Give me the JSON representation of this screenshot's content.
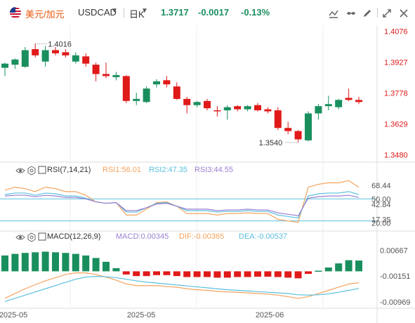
{
  "header": {
    "symbol_name": "美元/加元",
    "symbol_code": "USDCAD",
    "period": "日K",
    "last_price": "1.3717",
    "change": "-0.0017",
    "change_pct": "-0.13%",
    "tools": [
      "draw-icon",
      "indicator-icon",
      "pencil-icon",
      "settings-icon",
      "expand-icon",
      "close-icon"
    ]
  },
  "colors": {
    "up": "#1a8f5e",
    "down": "#e01919",
    "rsi1": "#f4a35d",
    "rsi2": "#5bc0de",
    "rsi3": "#9b7fd1",
    "dif": "#f4a35d",
    "dea": "#5bc0de"
  },
  "chart_data": {
    "type": "candlestick",
    "price_axis": [
      "1.4076",
      "1.3927",
      "1.3778",
      "1.3629",
      "1.3480"
    ],
    "ylim": [
      1.3455,
      1.4105
    ],
    "high_label": "1.4016",
    "low_label": "1.3540",
    "x_labels": [
      "2025-05",
      "2025-05",
      "2025-06"
    ],
    "candles": [
      {
        "o": 1.39,
        "h": 1.3925,
        "l": 1.386,
        "c": 1.392
      },
      {
        "o": 1.3915,
        "h": 1.3945,
        "l": 1.3895,
        "c": 1.394
      },
      {
        "o": 1.3905,
        "h": 1.4,
        "l": 1.39,
        "c": 1.3985
      },
      {
        "o": 1.399,
        "h": 1.4016,
        "l": 1.395,
        "c": 1.396
      },
      {
        "o": 1.393,
        "h": 1.4005,
        "l": 1.3905,
        "c": 1.3985
      },
      {
        "o": 1.3985,
        "h": 1.4,
        "l": 1.396,
        "c": 1.397
      },
      {
        "o": 1.3975,
        "h": 1.399,
        "l": 1.395,
        "c": 1.396
      },
      {
        "o": 1.393,
        "h": 1.3975,
        "l": 1.392,
        "c": 1.396
      },
      {
        "o": 1.3955,
        "h": 1.397,
        "l": 1.3905,
        "c": 1.392
      },
      {
        "o": 1.3915,
        "h": 1.3925,
        "l": 1.3835,
        "c": 1.387
      },
      {
        "o": 1.387,
        "h": 1.3925,
        "l": 1.385,
        "c": 1.386
      },
      {
        "o": 1.3855,
        "h": 1.388,
        "l": 1.384,
        "c": 1.3865
      },
      {
        "o": 1.386,
        "h": 1.3865,
        "l": 1.373,
        "c": 1.374
      },
      {
        "o": 1.374,
        "h": 1.378,
        "l": 1.372,
        "c": 1.375
      },
      {
        "o": 1.3735,
        "h": 1.381,
        "l": 1.373,
        "c": 1.38
      },
      {
        "o": 1.382,
        "h": 1.3845,
        "l": 1.3805,
        "c": 1.3835
      },
      {
        "o": 1.384,
        "h": 1.386,
        "l": 1.3805,
        "c": 1.382
      },
      {
        "o": 1.381,
        "h": 1.383,
        "l": 1.3745,
        "c": 1.375
      },
      {
        "o": 1.375,
        "h": 1.376,
        "l": 1.368,
        "c": 1.372
      },
      {
        "o": 1.372,
        "h": 1.374,
        "l": 1.371,
        "c": 1.3735
      },
      {
        "o": 1.374,
        "h": 1.375,
        "l": 1.3695,
        "c": 1.3705
      },
      {
        "o": 1.3695,
        "h": 1.3715,
        "l": 1.3665,
        "c": 1.369
      },
      {
        "o": 1.3695,
        "h": 1.372,
        "l": 1.365,
        "c": 1.371
      },
      {
        "o": 1.3715,
        "h": 1.372,
        "l": 1.369,
        "c": 1.37
      },
      {
        "o": 1.37,
        "h": 1.372,
        "l": 1.369,
        "c": 1.3715
      },
      {
        "o": 1.372,
        "h": 1.373,
        "l": 1.369,
        "c": 1.3695
      },
      {
        "o": 1.37,
        "h": 1.371,
        "l": 1.368,
        "c": 1.369
      },
      {
        "o": 1.3695,
        "h": 1.371,
        "l": 1.36,
        "c": 1.361
      },
      {
        "o": 1.361,
        "h": 1.364,
        "l": 1.358,
        "c": 1.3595
      },
      {
        "o": 1.3595,
        "h": 1.36,
        "l": 1.354,
        "c": 1.3555
      },
      {
        "o": 1.355,
        "h": 1.369,
        "l": 1.3545,
        "c": 1.368
      },
      {
        "o": 1.368,
        "h": 1.3725,
        "l": 1.365,
        "c": 1.3715
      },
      {
        "o": 1.3715,
        "h": 1.3765,
        "l": 1.3695,
        "c": 1.3725
      },
      {
        "o": 1.371,
        "h": 1.375,
        "l": 1.37,
        "c": 1.3745
      },
      {
        "o": 1.3755,
        "h": 1.38,
        "l": 1.374,
        "c": 1.3745
      },
      {
        "o": 1.3745,
        "h": 1.376,
        "l": 1.3725,
        "c": 1.3735
      }
    ],
    "rsi": {
      "label": "RSI(7,14,21)",
      "rsi1": "RSI1:56.01",
      "rsi2": "RSI2:47.35",
      "rsi3": "RSI3:44.55",
      "axis": [
        "68.44",
        "50.00",
        "42.84",
        "17.35",
        "20.00"
      ],
      "ylim": [
        10,
        80
      ],
      "lines": [
        50,
        20
      ],
      "series": [
        {
          "key": "rsi1",
          "values": [
            62,
            66,
            64,
            60,
            66,
            64,
            60,
            60,
            55,
            46,
            44,
            45,
            28,
            28,
            36,
            45,
            46,
            40,
            30,
            30,
            30,
            28,
            30,
            30,
            31,
            30,
            30,
            22,
            20,
            18,
            66,
            70,
            72,
            72,
            75,
            66
          ]
        },
        {
          "key": "rsi2",
          "values": [
            56,
            58,
            58,
            55,
            58,
            57,
            54,
            54,
            51,
            46,
            44,
            45,
            32,
            32,
            38,
            44,
            45,
            40,
            34,
            34,
            34,
            32,
            33,
            33,
            34,
            33,
            33,
            28,
            26,
            24,
            54,
            57,
            58,
            58,
            60,
            56
          ]
        },
        {
          "key": "rsi3",
          "values": [
            54,
            55,
            55,
            53,
            55,
            54,
            52,
            52,
            50,
            46,
            44,
            45,
            34,
            34,
            38,
            43,
            44,
            40,
            36,
            36,
            36,
            34,
            35,
            35,
            36,
            35,
            35,
            31,
            29,
            27,
            51,
            53,
            54,
            54,
            55,
            52
          ]
        }
      ]
    },
    "macd": {
      "label": "MACD(12,26,9)",
      "macd": "MACD:0.00345",
      "dif": "DIF:-0.00365",
      "dea": "DEA:-0.00537",
      "axis": [
        "0.00667",
        "-0.00151",
        "-0.00969"
      ],
      "ylim": [
        -0.0112,
        0.0085
      ],
      "hist": [
        0.005,
        0.0055,
        0.0058,
        0.006,
        0.0062,
        0.006,
        0.0058,
        0.0055,
        0.005,
        0.0042,
        0.003,
        0.001,
        -0.001,
        -0.0015,
        -0.0015,
        -0.0012,
        -0.0012,
        -0.0015,
        -0.0018,
        -0.0018,
        -0.0018,
        -0.002,
        -0.002,
        -0.0018,
        -0.0018,
        -0.0017,
        -0.0017,
        -0.0018,
        -0.002,
        -0.0022,
        -0.0008,
        0.0002,
        0.0012,
        0.0025,
        0.0035,
        0.0034
      ],
      "dif_series": [
        -0.0085,
        -0.007,
        -0.0055,
        -0.0042,
        -0.003,
        -0.002,
        -0.001,
        -0.0005,
        -0.0005,
        -0.001,
        -0.0018,
        -0.0028,
        -0.004,
        -0.0045,
        -0.0045,
        -0.0045,
        -0.0048,
        -0.005,
        -0.0055,
        -0.0058,
        -0.006,
        -0.0063,
        -0.0065,
        -0.0066,
        -0.0068,
        -0.007,
        -0.0072,
        -0.0075,
        -0.008,
        -0.0085,
        -0.008,
        -0.007,
        -0.006,
        -0.005,
        -0.004,
        -0.0036
      ],
      "dea_series": [
        -0.0095,
        -0.0085,
        -0.0075,
        -0.0065,
        -0.0055,
        -0.0045,
        -0.0035,
        -0.0025,
        -0.0018,
        -0.0016,
        -0.0017,
        -0.002,
        -0.0025,
        -0.003,
        -0.0034,
        -0.0037,
        -0.004,
        -0.0043,
        -0.0046,
        -0.0049,
        -0.0052,
        -0.0055,
        -0.0058,
        -0.006,
        -0.0062,
        -0.0064,
        -0.0066,
        -0.0068,
        -0.007,
        -0.0074,
        -0.0075,
        -0.0074,
        -0.0071,
        -0.0066,
        -0.006,
        -0.0054
      ]
    }
  }
}
